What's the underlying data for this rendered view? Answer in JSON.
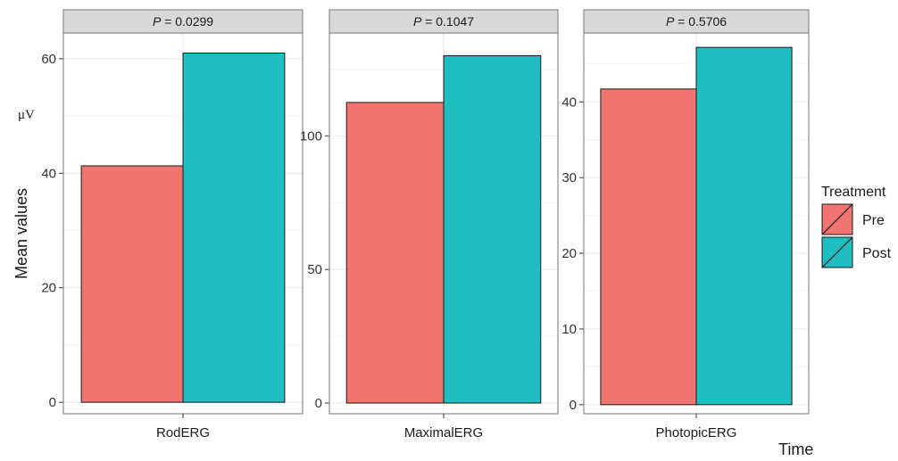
{
  "chart_data": {
    "type": "bar",
    "ylabel": "Mean values",
    "ylabel_unit": "μV",
    "xlabel": "Time",
    "legend": {
      "title": "Treatment",
      "position": "right",
      "entries": [
        {
          "label": "Pre",
          "color": "#F07470"
        },
        {
          "label": "Post",
          "color": "#1FBEC1"
        }
      ]
    },
    "grid": true,
    "facets": [
      {
        "strip_prefix": "P",
        "strip_value": " = 0.0299",
        "category": "RodERG",
        "ylim": [
          -2,
          64.5
        ],
        "yticks": [
          0,
          20,
          40,
          60
        ],
        "values": {
          "Pre": 41.3,
          "Post": 61.0
        }
      },
      {
        "strip_prefix": "P",
        "strip_value": " = 0.1047",
        "category": "MaximalERG",
        "ylim": [
          -4,
          138.5
        ],
        "yticks": [
          0,
          50,
          100
        ],
        "values": {
          "Pre": 112.5,
          "Post": 130.0
        }
      },
      {
        "strip_prefix": "P",
        "strip_value": " = 0.5706",
        "category": "PhotopicERG",
        "ylim": [
          -1.2,
          49.1
        ],
        "yticks": [
          0,
          10,
          20,
          30,
          40
        ],
        "values": {
          "Pre": 41.7,
          "Post": 47.2
        }
      }
    ],
    "colors": {
      "pre": "#F07470",
      "post": "#1FBEC1",
      "strip_fill": "#D9D9D9",
      "panel_border": "#8C8C8C",
      "grid": "#EBEBEB"
    }
  }
}
